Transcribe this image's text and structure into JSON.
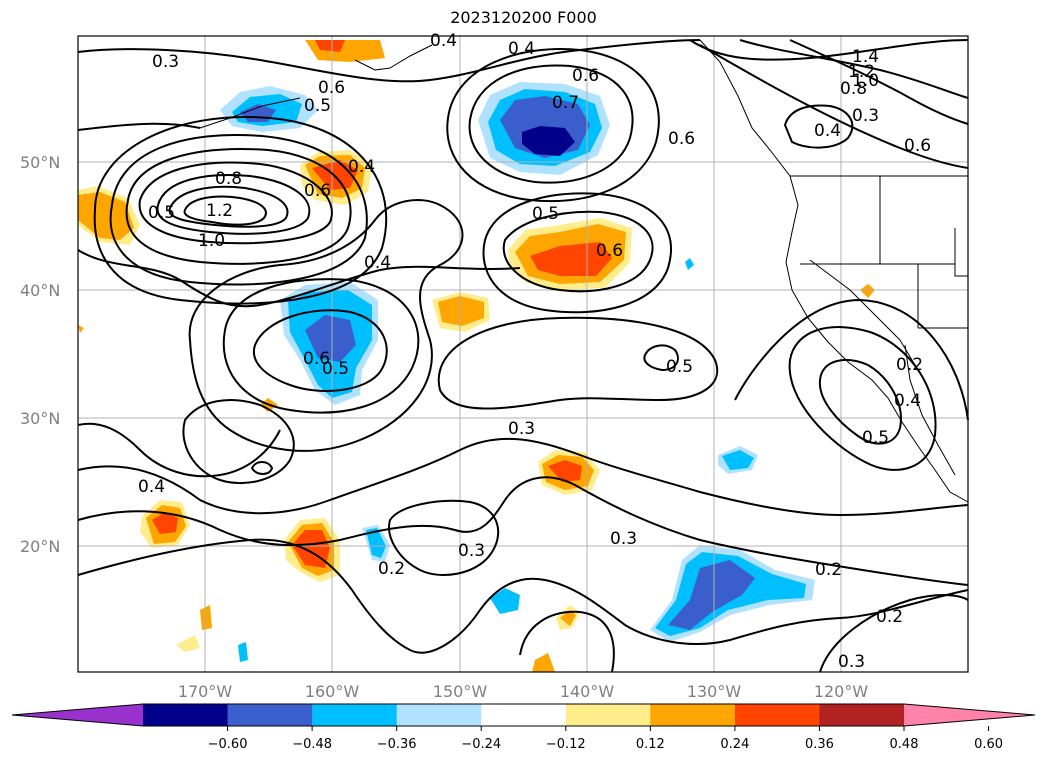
{
  "title": "2023120200 F000",
  "lat_labels": [
    "50°N",
    "40°N",
    "30°N",
    "20°N"
  ],
  "lon_labels": [
    "170°W",
    "160°W",
    "150°W",
    "140°W",
    "130°W",
    "120°W"
  ],
  "colorbar": {
    "colors": [
      "#9932cc",
      "#00008b",
      "#3a5fcd",
      "#00bfff",
      "#b0e2ff",
      "#ffffff",
      "#ffec8b",
      "#ffa500",
      "#ff4500",
      "#b22222",
      "#ff82ab"
    ],
    "tick_labels": [
      "−0.60",
      "−0.48",
      "−0.36",
      "−0.24",
      "−0.12",
      "0.12",
      "0.24",
      "0.36",
      "0.48",
      "0.60"
    ]
  },
  "contour_labels": [
    "0.3",
    "0.4",
    "0.6",
    "0.7",
    "0.6",
    "1.4",
    "1.2",
    "1.0",
    "0.8",
    "0.3",
    "0.4",
    "0.6",
    "0.5",
    "0.6",
    "0.8",
    "1.2",
    "1.0",
    "0.6",
    "0.4",
    "0.4",
    "0.5",
    "0.6",
    "0.6",
    "0.5",
    "0.5",
    "0.2",
    "0.4",
    "0.5",
    "0.3",
    "0.4",
    "0.3",
    "0.3",
    "0.2",
    "0.2",
    "0.2",
    "0.3",
    "0.4",
    "0.5"
  ]
}
